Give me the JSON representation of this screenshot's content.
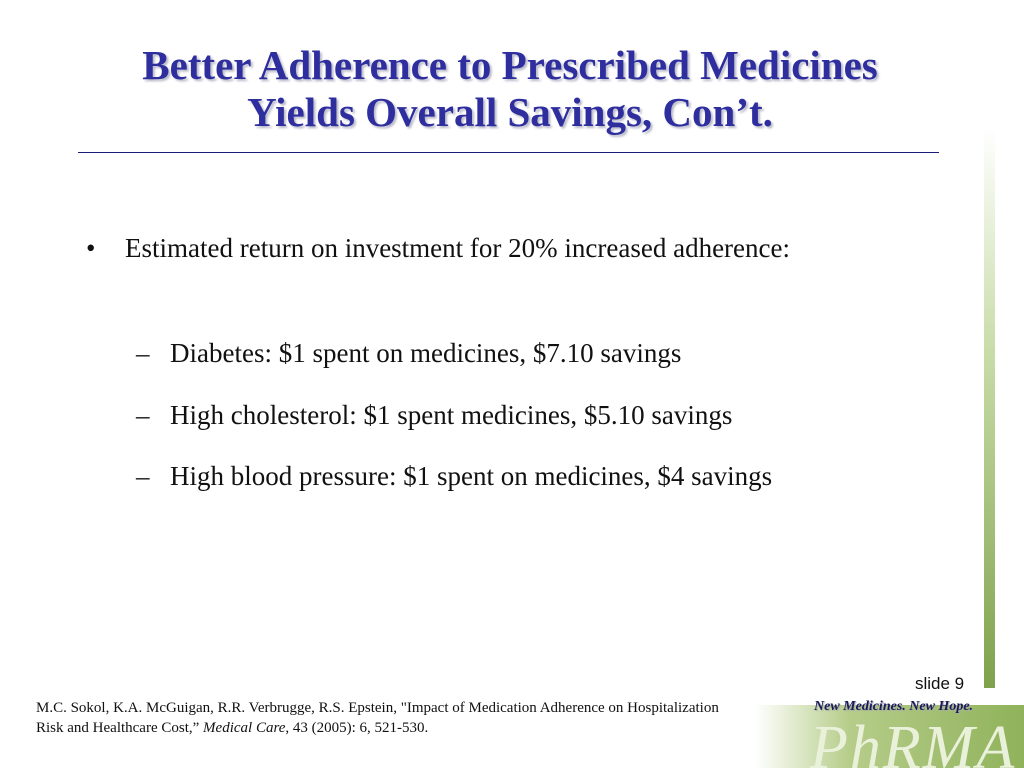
{
  "slide": {
    "title": [
      "Better Adherence to Prescribed Medicines",
      "Yields Overall Savings, Con’t."
    ],
    "bullet": "Estimated return on investment for 20% increased adherence:",
    "sub_bullets": [
      "Diabetes: $1 spent on medicines, $7.10 savings",
      "High cholesterol: $1 spent medicines, $5.10 savings",
      "High blood pressure: $1 spent on medicines, $4 savings"
    ],
    "citation": [
      "M.C. Sokol, K.A. McGuigan, R.R. Verbrugge, R.S. Epstein, \"Impact of Medication Adherence on Hospitalization Risk and Healthcare Cost,” ",
      "Medical Care",
      ", 43 (2005): 6, 521-530."
    ],
    "slide_number": "slide 9",
    "tagline": "New Medicines.  New Hope.",
    "logo": "PhRMA"
  }
}
